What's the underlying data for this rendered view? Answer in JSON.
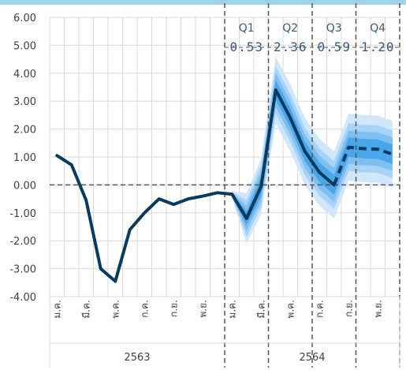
{
  "chart_data": {
    "type": "line",
    "colors": {
      "top_bar": "#9fd4e3",
      "actual_line": "#0b3a5f",
      "fan_outer": "#cfe6fb",
      "fan_mid1": "#a7d3f6",
      "fan_mid2": "#7fbff0",
      "fan_inner": "#4aa6ea",
      "grid": "#d9d9d9",
      "dashed_lines": "#555555"
    },
    "ylim": [
      -4,
      6
    ],
    "y_ticks": [
      "6.00",
      "5.00",
      "4.00",
      "3.00",
      "2.00",
      "1.00",
      "0.00",
      "-1.00",
      "-2.00",
      "-3.00",
      "-4.00"
    ],
    "x_month_labels": [
      "ม.ค.",
      "มี.ค.",
      "พ.ค.",
      "ก.ค.",
      "ก.ย.",
      "พ.ย.",
      "ม.ค.",
      "มี.ค.",
      "พ.ค.",
      "ก.ค.",
      "ก.ย.",
      "พ.ย."
    ],
    "x_month_label_positions": [
      0,
      2,
      4,
      6,
      8,
      10,
      12,
      14,
      16,
      18,
      20,
      22
    ],
    "years": [
      {
        "label": "2563",
        "from": 0,
        "to": 11
      },
      {
        "label": "2564",
        "from": 12,
        "to": 23
      }
    ],
    "actual": {
      "x": [
        0,
        1,
        2,
        3,
        4,
        5,
        6,
        7,
        8,
        9,
        10,
        11,
        12,
        13,
        14
      ],
      "y": [
        1.05,
        0.72,
        -0.55,
        -3.0,
        -3.45,
        -1.6,
        -1.0,
        -0.5,
        -0.7,
        -0.5,
        -0.4,
        -0.28,
        -0.33,
        -1.2,
        -0.05
      ]
    },
    "projection": {
      "x": [
        14,
        15,
        16,
        17,
        18,
        19,
        20,
        21,
        22,
        23
      ],
      "y": [
        -0.05,
        3.4,
        2.4,
        1.2,
        0.45,
        0.0,
        1.35,
        1.3,
        1.28,
        1.1
      ]
    },
    "projection_style": {
      "solid_until_x": 19
    },
    "fan": {
      "x": [
        12,
        13,
        14,
        15,
        16,
        17,
        18,
        19,
        20,
        21,
        22,
        23
      ],
      "center": [
        -0.33,
        -1.2,
        -0.05,
        3.4,
        2.4,
        1.2,
        0.45,
        0.0,
        1.35,
        1.3,
        1.28,
        1.1
      ],
      "half_widths": {
        "inner": [
          0.03,
          0.25,
          0.35,
          0.35,
          0.35,
          0.35,
          0.35,
          0.35,
          0.35,
          0.35,
          0.35,
          0.35
        ],
        "mid2": [
          0.06,
          0.45,
          0.55,
          0.6,
          0.6,
          0.6,
          0.6,
          0.6,
          0.6,
          0.6,
          0.6,
          0.6
        ],
        "mid1": [
          0.08,
          0.65,
          0.75,
          0.85,
          0.85,
          0.85,
          0.85,
          0.85,
          0.85,
          0.85,
          0.85,
          0.85
        ],
        "outer": [
          0.12,
          0.9,
          1.0,
          1.2,
          1.2,
          1.2,
          1.2,
          1.2,
          1.2,
          1.2,
          1.2,
          1.2
        ]
      }
    },
    "quarters": [
      {
        "label": "Q1",
        "value": "0.53",
        "from": 11.5,
        "to": 14.5
      },
      {
        "label": "Q2",
        "value": "2.36",
        "from": 14.5,
        "to": 17.5
      },
      {
        "label": "Q3",
        "value": "0.59",
        "from": 17.5,
        "to": 20.5
      },
      {
        "label": "Q4",
        "value": "1.20",
        "from": 20.5,
        "to": 23.5
      }
    ],
    "zero_line": 0
  }
}
